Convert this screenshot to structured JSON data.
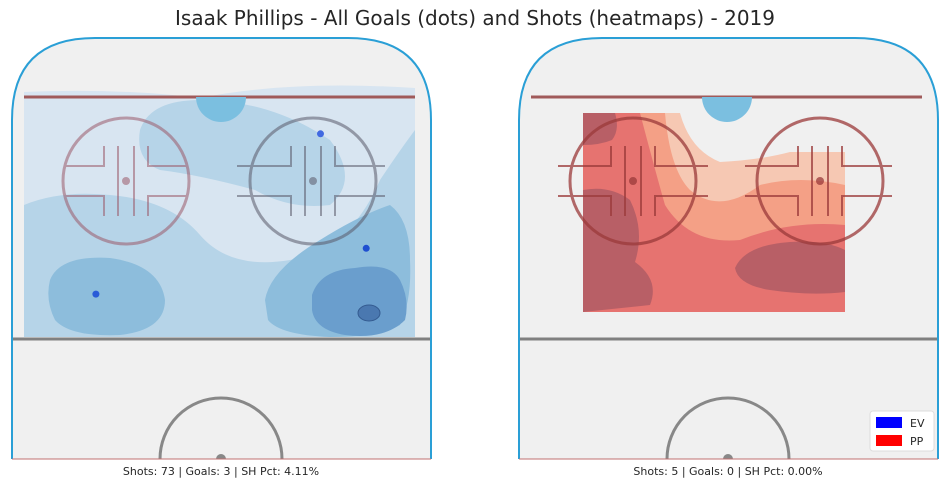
{
  "figure": {
    "title": "Isaak Phillips - All Goals (dots) and Shots (heatmaps) - 2019"
  },
  "chart_data": [
    {
      "type": "heatmap",
      "panel": "EV",
      "description_of_marks": "goal dots over shot density",
      "goals": [
        {
          "x": 71,
          "y": 26
        },
        {
          "x": 36,
          "y": -33
        },
        {
          "x": 46,
          "y": 38
        }
      ],
      "stats": {
        "shots": 73,
        "goals": 3,
        "sh_pct": "4.11%"
      },
      "caption": "Shots: 73 | Goals: 3 | SH Pct: 4.11%",
      "color": "#1f77b4"
    },
    {
      "type": "heatmap",
      "panel": "PP",
      "goals": [],
      "stats": {
        "shots": 5,
        "goals": 0,
        "sh_pct": "0.00%"
      },
      "caption": "Shots: 5 | Goals: 0 | SH Pct: 0.00%",
      "color": "#d62728"
    }
  ],
  "legend": [
    {
      "label": "EV",
      "color": "#0000ff"
    },
    {
      "label": "PP",
      "color": "#ff0000"
    }
  ],
  "colors": {
    "ice": "#f0f0f0",
    "boards": "#2a9fd6",
    "goal_line": "#a05a5a",
    "blue_line": "#808080",
    "crease": "#6bbde0"
  }
}
